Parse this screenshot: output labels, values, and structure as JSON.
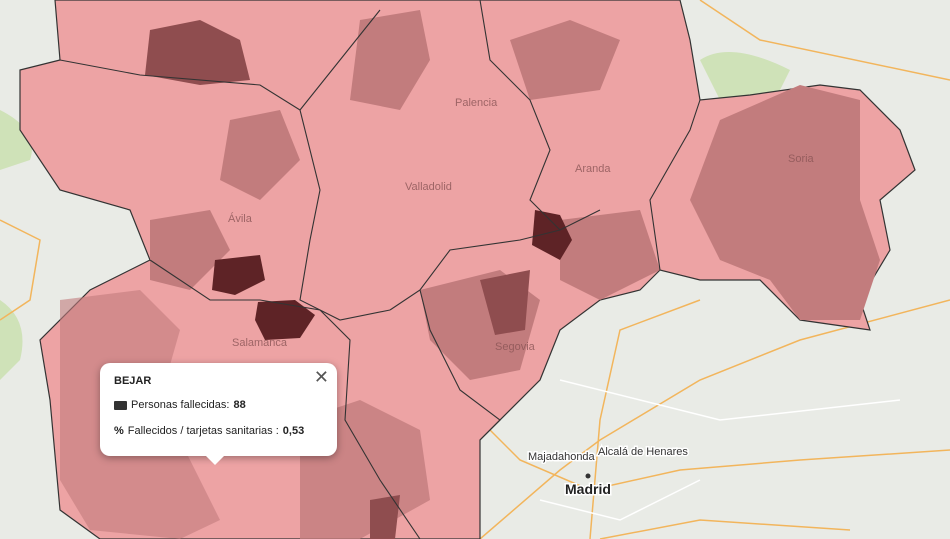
{
  "popup": {
    "title": "BEJAR",
    "rows": [
      {
        "label": "Personas fallecidas:",
        "value": "88"
      },
      {
        "label": "Fallecidos / tarjetas sanitarias :",
        "value": "0,53"
      }
    ]
  },
  "map_labels": {
    "madrid": "Madrid",
    "alcala": "Alcalá de Henares",
    "majadahonda": "Majadahonda",
    "soria": "Soria",
    "segovia": "Segovia",
    "salamanca": "Salamanca",
    "valladolid": "Valladolid",
    "avila": "Ávila",
    "aranda": "Aranda",
    "palencia": "Palencia"
  }
}
